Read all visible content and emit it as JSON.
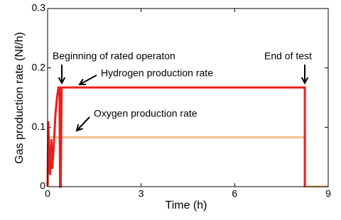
{
  "chart_data": {
    "type": "line",
    "xlabel": "Time (h)",
    "ylabel": "Gas production rate (Nℓ/h)",
    "xlim": [
      0,
      9
    ],
    "xticks": [
      0,
      3,
      6,
      9
    ],
    "ylim": [
      0,
      0.3
    ],
    "yticks": [
      0,
      0.1,
      0.2,
      0.3
    ],
    "series": [
      {
        "name": "Hydrogen production rate",
        "color": "#e8201c",
        "x": [
          0,
          0.02,
          0.05,
          0.08,
          0.12,
          0.15,
          0.2,
          0.25,
          0.3,
          0.35,
          0.38,
          0.4,
          0.42,
          0.45,
          8.25,
          8.25
        ],
        "values": [
          0,
          0.11,
          0.05,
          0.02,
          0.08,
          0.03,
          0.07,
          0.12,
          0.15,
          0.167,
          0.167,
          0,
          0,
          0.167,
          0.167,
          0
        ]
      },
      {
        "name": "Oxygen production rate",
        "color": "#f0c090",
        "x": [
          0,
          0.02,
          8.25,
          8.25,
          9
        ],
        "values": [
          0,
          0.083,
          0.083,
          0,
          0
        ]
      }
    ],
    "annotations": [
      "Beginning of rated operaton",
      "End of test",
      "Hydrogen production rate",
      "Oxygen production rate"
    ]
  }
}
